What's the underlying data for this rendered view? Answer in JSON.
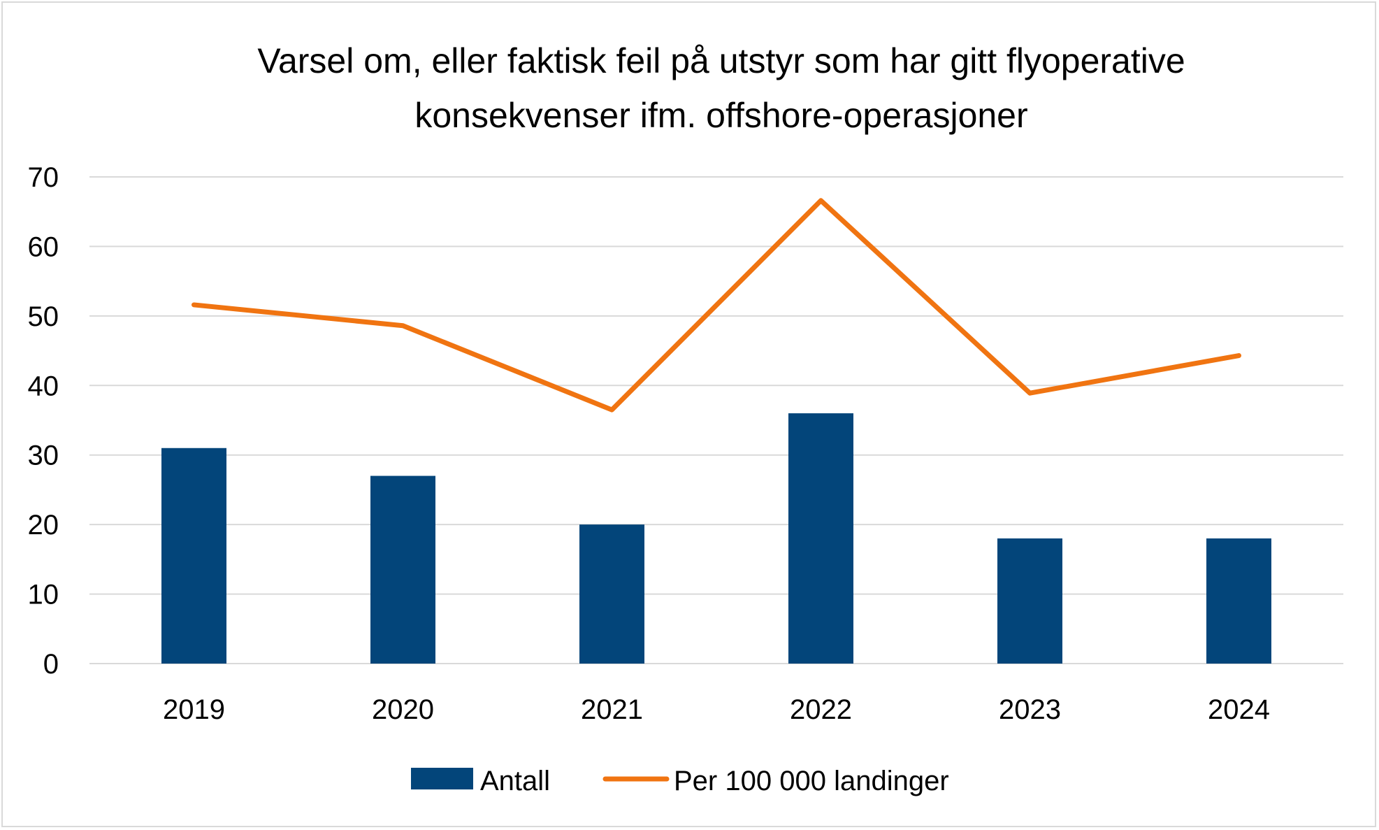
{
  "chart_data": {
    "type": "bar",
    "title": "Varsel om, eller faktisk feil på utstyr som har gitt flyoperative konsekvenser ifm. offshore-operasjoner",
    "title_lines": [
      "Varsel om, eller faktisk feil på utstyr som har gitt flyoperative",
      "konsekvenser ifm. offshore-operasjoner"
    ],
    "categories": [
      "2019",
      "2020",
      "2021",
      "2022",
      "2023",
      "2024"
    ],
    "series": [
      {
        "name": "Antall",
        "type": "bar",
        "color": "#03457A",
        "values": [
          31,
          27,
          20,
          36,
          18,
          18
        ]
      },
      {
        "name": "Per 100 000 landinger",
        "type": "line",
        "color": "#F07411",
        "values": [
          51.6,
          48.6,
          36.5,
          66.6,
          38.9,
          44.3
        ]
      }
    ],
    "ylim": [
      0,
      70
    ],
    "yticks": [
      0,
      10,
      20,
      30,
      40,
      50,
      60,
      70
    ],
    "xlabel": "",
    "ylabel": "",
    "grid": true,
    "legend_position": "bottom",
    "gridline_color": "#d9d9d9"
  }
}
